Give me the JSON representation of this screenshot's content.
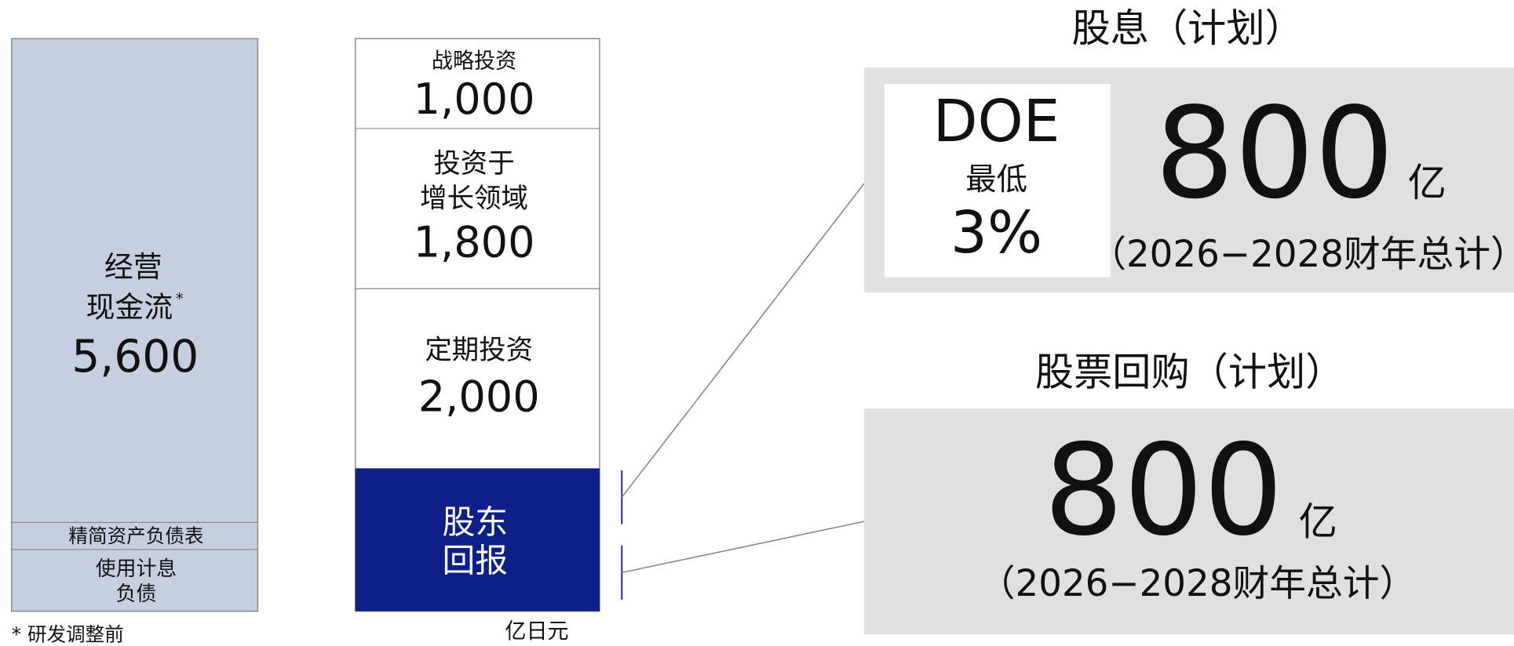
{
  "sources": {
    "operating": {
      "line1": "经营",
      "line2": "现金流",
      "note": "*",
      "value": "5,600"
    },
    "balance_sheet": "精简资产负债表",
    "debt": {
      "line1": "使用计息",
      "line2": "负债"
    }
  },
  "uses": {
    "strategic": {
      "label": "战略投资",
      "value": "1,000"
    },
    "growth": {
      "line1": "投资于",
      "line2": "增长领域",
      "value": "1,800"
    },
    "regular": {
      "label": "定期投资",
      "value": "2,000"
    },
    "shareholder": {
      "line1": "股东",
      "line2": "回报"
    }
  },
  "unit": "亿日元",
  "footnote": "* 研发调整前",
  "dividend": {
    "title": "股息（计划）",
    "doe": "DOE",
    "doe_label": "最低",
    "doe_value": "3%",
    "amount": "800",
    "amount_unit": "亿",
    "period": "（2026−2028财年总计）"
  },
  "buyback": {
    "title": "股票回购（计划）",
    "amount": "800",
    "amount_unit": "亿",
    "period": "（2026−2028财年总计）"
  }
}
